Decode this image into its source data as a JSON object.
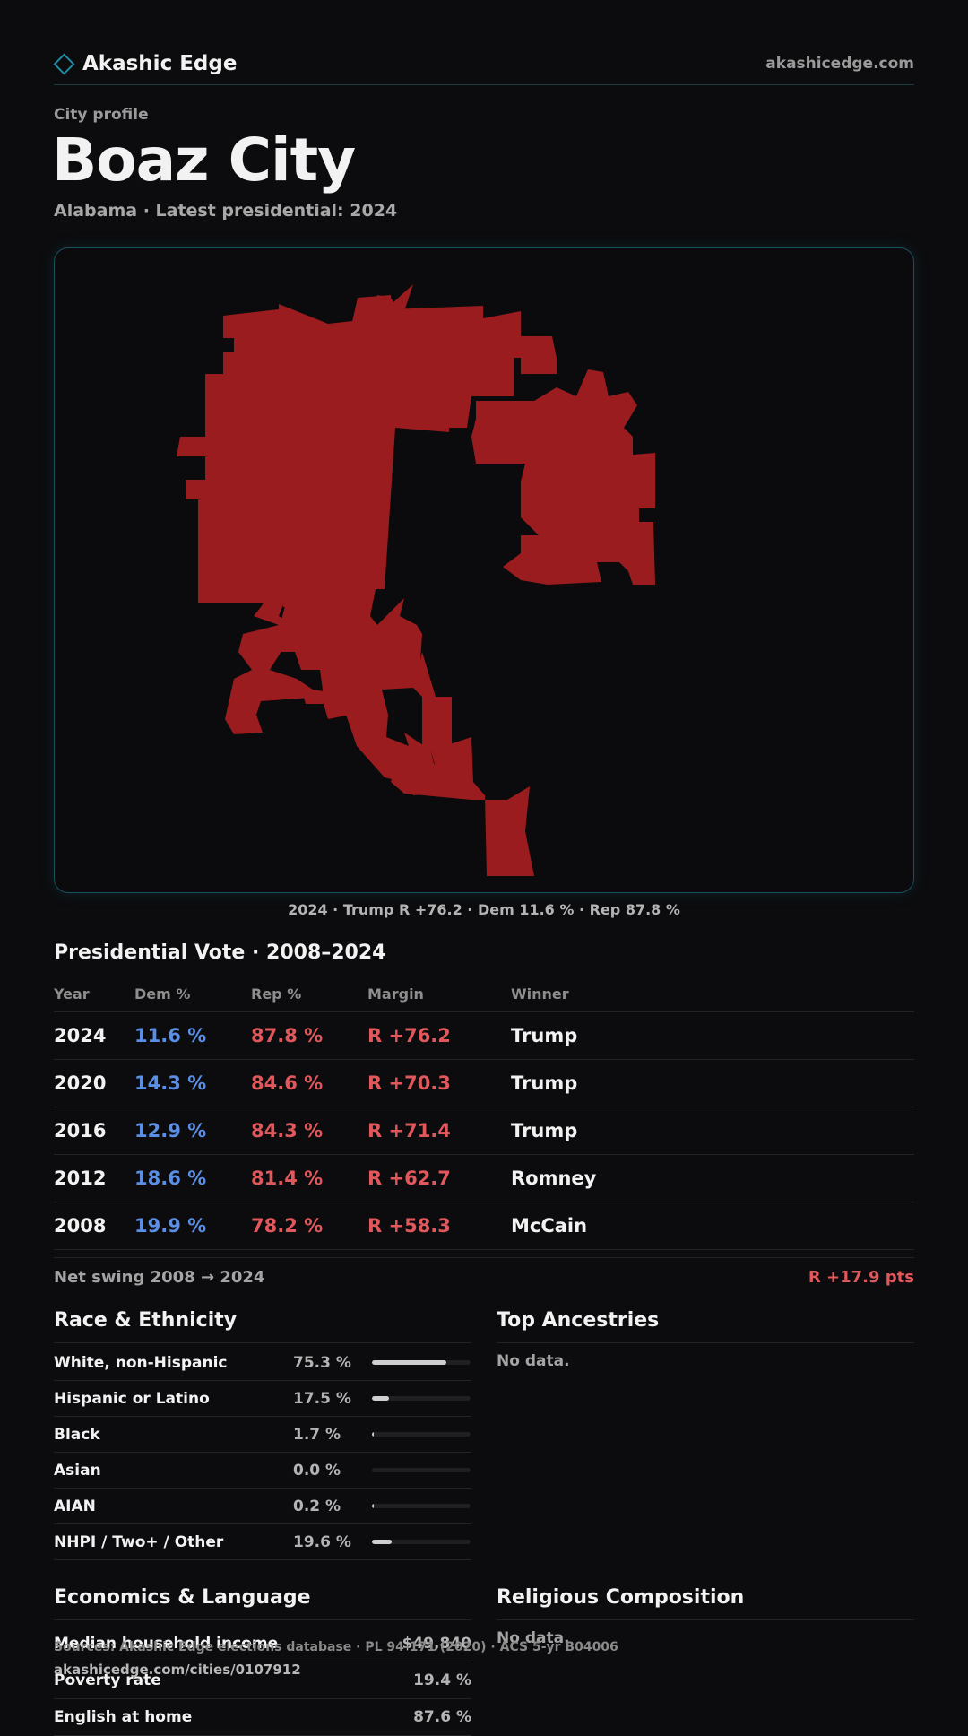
{
  "header": {
    "brand": "Akashic Edge",
    "site": "akashicedge.com"
  },
  "profile": {
    "kicker": "City profile",
    "title": "Boaz City",
    "subtitle": "Alabama · Latest presidential: 2024"
  },
  "map": {
    "fill_color": "#9a1c1e",
    "caption": "2024 · Trump R +76.2 · Dem 11.6 % · Rep 87.8 %"
  },
  "vote": {
    "title": "Presidential Vote · 2008–2024",
    "headers": {
      "year": "Year",
      "dem": "Dem %",
      "rep": "Rep %",
      "margin": "Margin",
      "winner": "Winner"
    },
    "rows": [
      {
        "year": "2024",
        "dem": "11.6 %",
        "rep": "87.8 %",
        "margin": "R +76.2",
        "winner": "Trump"
      },
      {
        "year": "2020",
        "dem": "14.3 %",
        "rep": "84.6 %",
        "margin": "R +70.3",
        "winner": "Trump"
      },
      {
        "year": "2016",
        "dem": "12.9 %",
        "rep": "84.3 %",
        "margin": "R +71.4",
        "winner": "Trump"
      },
      {
        "year": "2012",
        "dem": "18.6 %",
        "rep": "81.4 %",
        "margin": "R +62.7",
        "winner": "Romney"
      },
      {
        "year": "2008",
        "dem": "19.9 %",
        "rep": "78.2 %",
        "margin": "R +58.3",
        "winner": "McCain"
      }
    ],
    "swing_label": "Net swing 2008 → 2024",
    "swing_value": "R +17.9 pts",
    "colors": {
      "dem": "#5b8fe6",
      "rep": "#e0585c"
    }
  },
  "race": {
    "title": "Race & Ethnicity",
    "rows": [
      {
        "label": "White, non-Hispanic",
        "value": "75.3 %",
        "fraction": 0.753
      },
      {
        "label": "Hispanic or Latino",
        "value": "17.5 %",
        "fraction": 0.175
      },
      {
        "label": "Black",
        "value": "1.7 %",
        "fraction": 0.017
      },
      {
        "label": "Asian",
        "value": "0.0 %",
        "fraction": 0.0
      },
      {
        "label": "AIAN",
        "value": "0.2 %",
        "fraction": 0.002
      },
      {
        "label": "NHPI / Two+ / Other",
        "value": "19.6 %",
        "fraction": 0.196
      }
    ]
  },
  "ancestries": {
    "title": "Top Ancestries",
    "empty": "No data."
  },
  "economics": {
    "title": "Economics & Language",
    "rows": [
      {
        "label": "Median household income",
        "value": "$49,840"
      },
      {
        "label": "Poverty rate",
        "value": "19.4 %"
      },
      {
        "label": "English at home",
        "value": "87.6 %"
      }
    ]
  },
  "religion": {
    "title": "Religious Composition",
    "empty": "No data."
  },
  "footer": {
    "sources": "Sources: Akashic Edge elections database · PL 94-171 (2020) · ACS 5-yr B04006",
    "url": "akashicedge.com/cities/0107912"
  }
}
